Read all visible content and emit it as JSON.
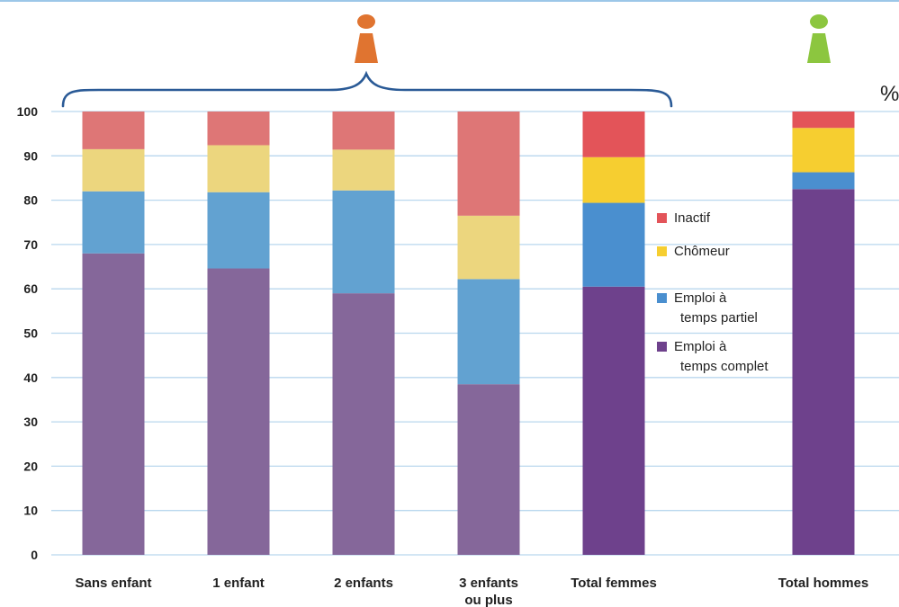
{
  "chart_data": {
    "type": "bar",
    "stacked": true,
    "unit": "%",
    "ylim": [
      0,
      100
    ],
    "yticks": [
      0,
      10,
      20,
      30,
      40,
      50,
      60,
      70,
      80,
      90,
      100
    ],
    "grid": true,
    "legend_position": "inside-right",
    "categories": [
      [
        "Sans enfant"
      ],
      [
        "1 enfant"
      ],
      [
        "2 enfants"
      ],
      [
        "3 enfants",
        "ou plus"
      ],
      [
        "Total femmes"
      ],
      [
        "Total hommes"
      ]
    ],
    "series": [
      {
        "name": "Emploi à temps complet",
        "legend_lines": [
          "Emploi à",
          "temps complet"
        ],
        "color": "#85679a",
        "highlight_color": "#6e418c",
        "values": [
          68,
          64.6,
          59,
          38.5,
          60.5,
          82.5
        ]
      },
      {
        "name": "Emploi à temps partiel",
        "legend_lines": [
          "Emploi à",
          "temps partiel"
        ],
        "color": "#62a2d1",
        "highlight_color": "#4a8fcf",
        "values": [
          14,
          17.2,
          23.2,
          23.7,
          18.9,
          3.8
        ]
      },
      {
        "name": "Chômeur",
        "legend_lines": [
          "Chômeur"
        ],
        "color": "#ecd67e",
        "highlight_color": "#f6ce30",
        "values": [
          9.5,
          10.6,
          9.2,
          14.3,
          10.3,
          10
        ]
      },
      {
        "name": "Inactif",
        "legend_lines": [
          "Inactif"
        ],
        "color": "#de7676",
        "highlight_color": "#e35459",
        "values": [
          8.5,
          7.6,
          8.6,
          23.5,
          10.3,
          3.7
        ]
      }
    ],
    "highlighted_categories": [
      4,
      5
    ],
    "icons": [
      {
        "name": "female-figure-icon",
        "color": "#e07430"
      },
      {
        "name": "male-figure-icon",
        "color": "#8cc63f"
      }
    ],
    "bracket_color": "#2a5a96",
    "grid_color": "#b9d7ee",
    "top_rule_color": "#9cc7e8"
  }
}
